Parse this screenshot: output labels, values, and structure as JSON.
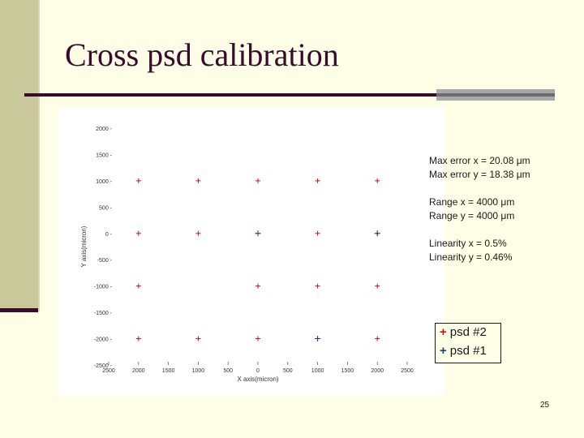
{
  "slide": {
    "title": "Cross psd calibration",
    "page_number": "25",
    "stats": {
      "max_error_x": "Max error x =   20.08 μm",
      "max_error_y": "Max error y =   18.38 μm",
      "range_x": "Range x =  4000 μm",
      "range_y": "Range y =  4000 μm",
      "linearity_x": "Linearity x = 0.5%",
      "linearity_y": "Linearity y = 0.46%"
    },
    "legend": [
      {
        "marker": "+",
        "label": "psd #2",
        "color": "#cc1111"
      },
      {
        "marker": "+",
        "label": "psd #1",
        "color": "#1a3a9a"
      }
    ]
  },
  "colors": {
    "accent": "#3a0a2e",
    "background": "#fefde6",
    "psd2": "#cc1111",
    "psd1": "#1a3a9a"
  },
  "chart_data": {
    "type": "scatter",
    "xlabel": "X axis(micron)",
    "ylabel": "Y axis(micron)",
    "xlim": [
      -2500,
      2500
    ],
    "ylim": [
      -2500,
      2000
    ],
    "x_ticks": [
      "2500",
      "2000",
      "1500",
      "1000",
      "500",
      "0",
      "500",
      "1000",
      "1500",
      "2000",
      "2500"
    ],
    "x_tick_values": [
      -2500,
      -2000,
      -1500,
      -1000,
      -500,
      0,
      500,
      1000,
      1500,
      2000,
      2500
    ],
    "y_ticks": [
      "2000",
      "1500",
      "1000",
      "500",
      "0",
      "-500",
      "-1000",
      "-1500",
      "-2000",
      "-2500"
    ],
    "y_tick_values": [
      2000,
      1500,
      1000,
      500,
      0,
      -500,
      -1000,
      -1500,
      -2000,
      -2500
    ],
    "series": [
      {
        "name": "psd #2",
        "color": "#cc1111",
        "points": [
          {
            "x": -2000,
            "y": 1000
          },
          {
            "x": -1000,
            "y": 1000
          },
          {
            "x": 0,
            "y": 1000
          },
          {
            "x": 1000,
            "y": 1000
          },
          {
            "x": 2000,
            "y": 1000
          },
          {
            "x": -2000,
            "y": 0
          },
          {
            "x": -1000,
            "y": 0
          },
          {
            "x": 0,
            "y": 0
          },
          {
            "x": 1000,
            "y": 0
          },
          {
            "x": 2000,
            "y": 0
          },
          {
            "x": -2000,
            "y": -1000
          },
          {
            "x": 0,
            "y": -1000
          },
          {
            "x": 1000,
            "y": -1000
          },
          {
            "x": 2000,
            "y": -1000
          },
          {
            "x": -2000,
            "y": -2000
          },
          {
            "x": -1000,
            "y": -2000
          },
          {
            "x": 0,
            "y": -2000
          },
          {
            "x": 1000,
            "y": -2000
          },
          {
            "x": 2000,
            "y": -2000
          }
        ]
      },
      {
        "name": "psd #1",
        "color": "#1a3a9a",
        "points": [
          {
            "x": 0,
            "y": 0
          },
          {
            "x": 2000,
            "y": 0
          },
          {
            "x": 1000,
            "y": -2000
          }
        ]
      }
    ]
  }
}
